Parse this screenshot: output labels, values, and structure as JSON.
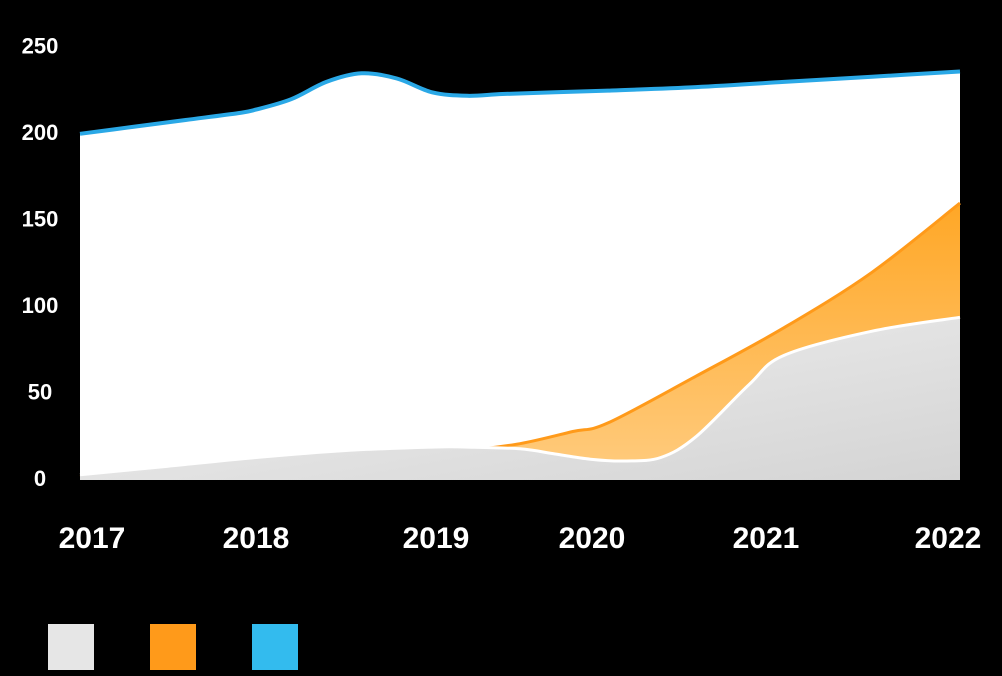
{
  "chart_data": {
    "type": "area",
    "title": "",
    "xlabel": "",
    "ylabel": "",
    "x_ticks": [
      "2017",
      "2018",
      "2019",
      "2020",
      "2021",
      "2022"
    ],
    "y_ticks": [
      "0",
      "50",
      "100",
      "150",
      "200",
      "250"
    ],
    "ylim": [
      0,
      260
    ],
    "xlim": [
      2017,
      2022
    ],
    "legend_position": "bottom",
    "series": [
      {
        "name": "",
        "color": "#e6e6e6",
        "x": [
          2017,
          2017.5,
          2018,
          2018.5,
          2019,
          2019.2,
          2019.5,
          2019.7,
          2019.9,
          2020.1,
          2020.3,
          2020.5,
          2020.8,
          2021,
          2021.5,
          2022
        ],
        "y": [
          3,
          8,
          13,
          17,
          19,
          19,
          18,
          15,
          12,
          11,
          13,
          25,
          55,
          72,
          86,
          94
        ]
      },
      {
        "name": "",
        "color": "#ff9a1a",
        "x": [
          2017,
          2017.5,
          2018,
          2018.5,
          2019,
          2019.2,
          2019.5,
          2019.8,
          2020,
          2020.5,
          2021,
          2021.5,
          2022
        ],
        "y": [
          2,
          6,
          10,
          12,
          15,
          17,
          21,
          28,
          33,
          60,
          88,
          120,
          160
        ]
      },
      {
        "name": "",
        "color": "#33bbee",
        "x": [
          2017,
          2017.3,
          2017.6,
          2017.9,
          2018,
          2018.2,
          2018.4,
          2018.6,
          2018.8,
          2019,
          2019.2,
          2019.4,
          2019.7,
          2020,
          2020.5,
          2021,
          2021.5,
          2022
        ],
        "y": [
          200,
          204,
          208,
          212,
          214,
          220,
          230,
          235,
          232,
          224,
          222,
          223,
          224,
          225,
          227,
          230,
          233,
          236
        ]
      }
    ]
  },
  "legend": [
    {
      "label": "",
      "color": "#e6e6e6"
    },
    {
      "label": "",
      "color": "#ff9a1a"
    },
    {
      "label": "",
      "color": "#33bbee"
    }
  ]
}
